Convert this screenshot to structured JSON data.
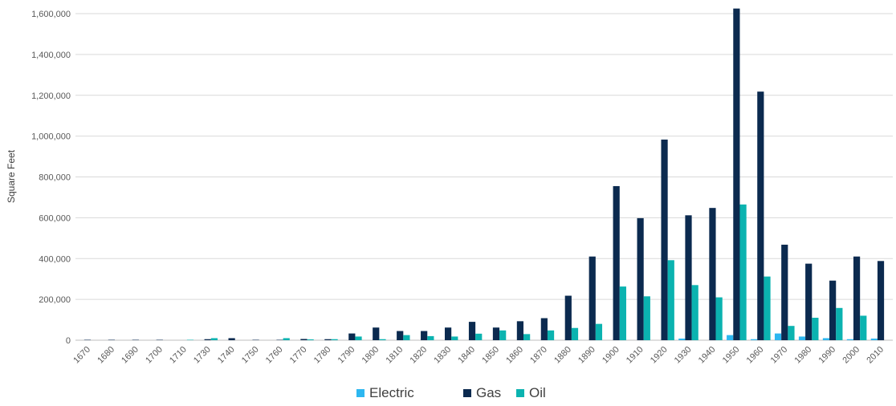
{
  "chart_data": {
    "type": "bar",
    "title": "",
    "xlabel": "",
    "ylabel": "Square Feet",
    "ylim": [
      0,
      1600000
    ],
    "yticks": [
      0,
      200000,
      400000,
      600000,
      800000,
      1000000,
      1200000,
      1400000,
      1600000
    ],
    "ytick_labels": [
      "0",
      "200,000",
      "400,000",
      "600,000",
      "800,000",
      "1,000,000",
      "1,200,000",
      "1,400,000",
      "1,600,000"
    ],
    "grid": true,
    "legend_position": "bottom",
    "categories": [
      "1670",
      "1680",
      "1690",
      "1700",
      "1710",
      "1730",
      "1740",
      "1750",
      "1760",
      "1770",
      "1780",
      "1790",
      "1800",
      "1810",
      "1820",
      "1830",
      "1840",
      "1850",
      "1860",
      "1870",
      "1880",
      "1890",
      "1900",
      "1910",
      "1920",
      "1930",
      "1940",
      "1950",
      "1960",
      "1970",
      "1980",
      "1990",
      "2000",
      "2010"
    ],
    "series": [
      {
        "name": "Electric",
        "color": "#2DB7F0",
        "values": [
          0,
          0,
          0,
          0,
          0,
          0,
          0,
          0,
          0,
          0,
          0,
          0,
          0,
          0,
          0,
          0,
          0,
          0,
          0,
          0,
          0,
          0,
          0,
          0,
          0,
          8000,
          0,
          25000,
          5000,
          33000,
          18000,
          10000,
          5000,
          8000
        ]
      },
      {
        "name": "Gas",
        "color": "#0B2A4F",
        "values": [
          2000,
          2000,
          2000,
          2000,
          0,
          5000,
          10000,
          2000,
          2000,
          6000,
          5000,
          33000,
          62000,
          45000,
          45000,
          62000,
          90000,
          62000,
          93000,
          108000,
          218000,
          410000,
          755000,
          598000,
          983000,
          612000,
          648000,
          1625000,
          1218000,
          468000,
          375000,
          292000,
          410000,
          388000
        ]
      },
      {
        "name": "Oil",
        "color": "#0BB3B0",
        "values": [
          0,
          0,
          0,
          0,
          2000,
          10000,
          0,
          0,
          10000,
          4000,
          5000,
          18000,
          5000,
          25000,
          20000,
          18000,
          32000,
          48000,
          30000,
          48000,
          60000,
          80000,
          263000,
          215000,
          392000,
          270000,
          210000,
          665000,
          312000,
          70000,
          110000,
          158000,
          120000,
          0
        ]
      }
    ]
  }
}
